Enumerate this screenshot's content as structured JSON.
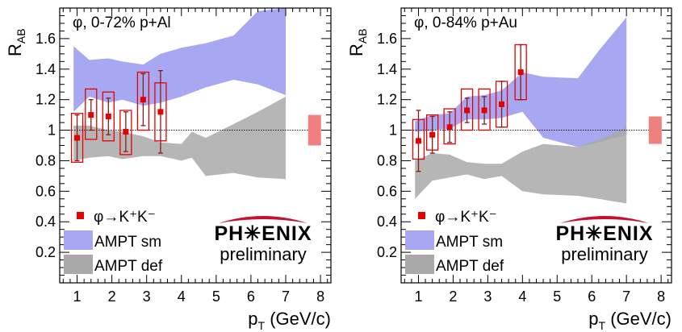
{
  "chart_data": [
    {
      "type": "scatter",
      "title": "φ, 0-72% p+Al",
      "ylabel": "R",
      "ylabel_sub": "AB",
      "xlabel": "p",
      "xlabel_sub": "T",
      "xlabel_unit": "(GeV/c)",
      "xlim": [
        0.5,
        8.3
      ],
      "ylim": [
        0,
        1.8
      ],
      "xticks": [
        "1",
        "2",
        "3",
        "4",
        "5",
        "6",
        "7",
        "8"
      ],
      "yticks": [
        "0.2",
        "0.4",
        "0.6",
        "0.8",
        "1",
        "1.2",
        "1.4",
        "1.6"
      ],
      "reference_line": 1,
      "legend": [
        "φ→K⁺K⁻",
        "AMPT sm",
        "AMPT def"
      ],
      "logo": {
        "text": "PH✳ENIX",
        "sub": "preliminary"
      },
      "series": [
        {
          "name": "φ→K⁺K⁻",
          "x": [
            1.0,
            1.4,
            1.9,
            2.4,
            2.9,
            3.4
          ],
          "y": [
            0.95,
            1.1,
            1.09,
            0.99,
            1.2,
            1.12
          ],
          "stat_err": [
            0.15,
            0.1,
            0.12,
            0.13,
            0.17,
            0.27
          ],
          "sys_low": [
            0.79,
            0.94,
            0.93,
            0.84,
            1.0,
            0.93
          ],
          "sys_high": [
            1.11,
            1.27,
            1.25,
            1.13,
            1.38,
            1.31
          ],
          "color": "#e60000"
        }
      ],
      "global_sys": {
        "low": 0.9,
        "high": 1.1,
        "color": "#f08080"
      },
      "bands": [
        {
          "name": "AMPT sm",
          "color": "#a8a8f2",
          "x": [
            0.9,
            1.35,
            1.9,
            2.3,
            2.9,
            3.4,
            4.0,
            4.7,
            5.5,
            6.2,
            7.0
          ],
          "upper": [
            1.55,
            1.46,
            1.47,
            1.45,
            1.43,
            1.5,
            1.54,
            1.57,
            1.62,
            1.78,
            1.8
          ],
          "lower": [
            1.12,
            1.22,
            1.18,
            1.2,
            1.16,
            1.18,
            1.22,
            1.28,
            1.33,
            1.3,
            1.23
          ]
        },
        {
          "name": "AMPT def",
          "color": "#a9a9a9",
          "x": [
            0.9,
            1.35,
            1.9,
            2.3,
            2.9,
            3.4,
            4.0,
            4.3,
            4.7,
            5.5,
            6.2,
            7.0
          ],
          "upper": [
            1.03,
            1.03,
            1.0,
            0.99,
            0.96,
            0.92,
            0.91,
            0.99,
            0.95,
            1.04,
            1.12,
            1.22
          ],
          "lower": [
            0.8,
            0.82,
            0.83,
            0.81,
            0.83,
            0.83,
            0.8,
            0.82,
            0.7,
            0.72,
            0.69,
            0.68
          ]
        }
      ]
    },
    {
      "type": "scatter",
      "title": "φ, 0-84% p+Au",
      "ylabel": "R",
      "ylabel_sub": "AB",
      "xlabel": "p",
      "xlabel_sub": "T",
      "xlabel_unit": "(GeV/c)",
      "xlim": [
        0.5,
        8.3
      ],
      "ylim": [
        0,
        1.8
      ],
      "xticks": [
        "1",
        "2",
        "3",
        "4",
        "5",
        "6",
        "7",
        "8"
      ],
      "yticks": [
        "0.2",
        "0.4",
        "0.6",
        "0.8",
        "1",
        "1.2",
        "1.4",
        "1.6"
      ],
      "reference_line": 1,
      "legend": [
        "φ→K⁺K⁻",
        "AMPT sm",
        "AMPT def"
      ],
      "logo": {
        "text": "PH✳ENIX",
        "sub": "preliminary"
      },
      "series": [
        {
          "name": "φ→K⁺K⁻",
          "x": [
            1.0,
            1.4,
            1.9,
            2.4,
            2.9,
            3.4,
            3.95
          ],
          "y": [
            0.93,
            0.97,
            1.02,
            1.13,
            1.13,
            1.17,
            1.38
          ],
          "stat_err": [
            0.2,
            0.12,
            0.1,
            0.08,
            0.09,
            0.15,
            0.18
          ],
          "sys_low": [
            0.81,
            0.87,
            0.91,
            1.0,
            1.0,
            1.02,
            1.2
          ],
          "sys_high": [
            1.07,
            1.1,
            1.14,
            1.27,
            1.27,
            1.32,
            1.56
          ],
          "color": "#e60000"
        }
      ],
      "global_sys": {
        "low": 0.91,
        "high": 1.09,
        "color": "#f08080"
      },
      "bands": [
        {
          "name": "AMPT sm",
          "color": "#a8a8f2",
          "x": [
            0.9,
            1.4,
            1.9,
            2.4,
            2.9,
            3.4,
            4.0,
            4.6,
            5.6,
            6.2,
            7.0
          ],
          "upper": [
            1.06,
            1.1,
            1.11,
            1.22,
            1.23,
            1.26,
            1.38,
            1.35,
            1.34,
            1.52,
            1.74
          ],
          "lower": [
            0.99,
            1.0,
            1.01,
            1.07,
            1.07,
            1.08,
            1.12,
            0.95,
            0.89,
            0.92,
            0.97
          ]
        },
        {
          "name": "AMPT def",
          "color": "#a9a9a9",
          "x": [
            0.9,
            1.4,
            1.9,
            2.4,
            2.9,
            3.4,
            4.0,
            4.6,
            5.6,
            6.2,
            7.0
          ],
          "upper": [
            0.8,
            0.85,
            0.84,
            0.79,
            0.78,
            0.78,
            0.86,
            0.91,
            0.89,
            0.94,
            1.02
          ],
          "lower": [
            0.55,
            0.67,
            0.69,
            0.71,
            0.68,
            0.7,
            0.6,
            0.58,
            0.57,
            0.55,
            0.52
          ]
        }
      ]
    }
  ]
}
